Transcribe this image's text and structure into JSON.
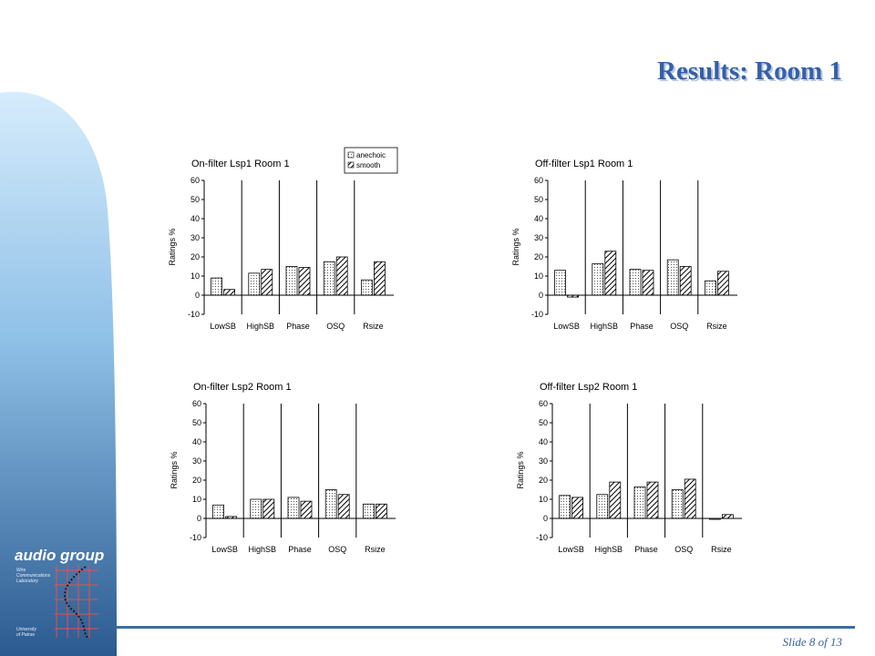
{
  "slide": {
    "title": "Results: Room 1",
    "slide_number": "Slide 8 of 13"
  },
  "logo": {
    "title": "audio group",
    "lab_lines": [
      "Wire",
      "Communications",
      "Laboratory"
    ],
    "uni_lines": [
      "University",
      "of Patras"
    ]
  },
  "colors": {
    "title": "#3560a8",
    "band_light": "#cfe8fb",
    "band_dark": "#2e5f96",
    "footer_line": "#3a6ea5"
  },
  "legend": {
    "entries": [
      "anechoic",
      "smooth"
    ],
    "placement": "top-right of first chart"
  },
  "chart_data": [
    {
      "type": "bar",
      "title": "On-filter Lsp1 Room 1",
      "ylabel": "Ratings %",
      "categories": [
        "LowSB",
        "HighSB",
        "Phase",
        "OSQ",
        "Rsize"
      ],
      "ylim": [
        -10,
        60
      ],
      "yticks": [
        -10,
        0,
        10,
        20,
        30,
        40,
        50,
        60
      ],
      "series": [
        {
          "name": "anechoic",
          "values": [
            9,
            11.5,
            15,
            17.5,
            8
          ]
        },
        {
          "name": "smooth",
          "values": [
            3,
            13.5,
            14.5,
            20,
            17.5
          ]
        }
      ]
    },
    {
      "type": "bar",
      "title": "Off-filter Lsp1 Room 1",
      "ylabel": "Ratings %",
      "categories": [
        "LowSB",
        "HighSB",
        "Phase",
        "OSQ",
        "Rsize"
      ],
      "ylim": [
        -10,
        60
      ],
      "yticks": [
        -10,
        0,
        10,
        20,
        30,
        40,
        50,
        60
      ],
      "series": [
        {
          "name": "anechoic",
          "values": [
            13,
            16.5,
            13.5,
            18.5,
            7.5
          ]
        },
        {
          "name": "smooth",
          "values": [
            -1,
            23,
            13,
            15,
            12.5
          ]
        }
      ]
    },
    {
      "type": "bar",
      "title": "On-filter Lsp2 Room 1",
      "ylabel": "Ratings %",
      "categories": [
        "LowSB",
        "HighSB",
        "Phase",
        "OSQ",
        "Rsize"
      ],
      "ylim": [
        -10,
        60
      ],
      "yticks": [
        -10,
        0,
        10,
        20,
        30,
        40,
        50,
        60
      ],
      "series": [
        {
          "name": "anechoic",
          "values": [
            7,
            10,
            11,
            15,
            7.5
          ]
        },
        {
          "name": "smooth",
          "values": [
            1,
            10,
            9,
            12.5,
            7.5
          ]
        }
      ]
    },
    {
      "type": "bar",
      "title": "Off-filter Lsp2 Room 1",
      "ylabel": "Ratings %",
      "categories": [
        "LowSB",
        "HighSB",
        "Phase",
        "OSQ",
        "Rsize"
      ],
      "ylim": [
        -10,
        60
      ],
      "yticks": [
        -10,
        0,
        10,
        20,
        30,
        40,
        50,
        60
      ],
      "series": [
        {
          "name": "anechoic",
          "values": [
            12,
            12.5,
            16.5,
            15,
            -0.5
          ]
        },
        {
          "name": "smooth",
          "values": [
            11,
            19,
            19,
            20.5,
            2
          ]
        }
      ]
    }
  ]
}
